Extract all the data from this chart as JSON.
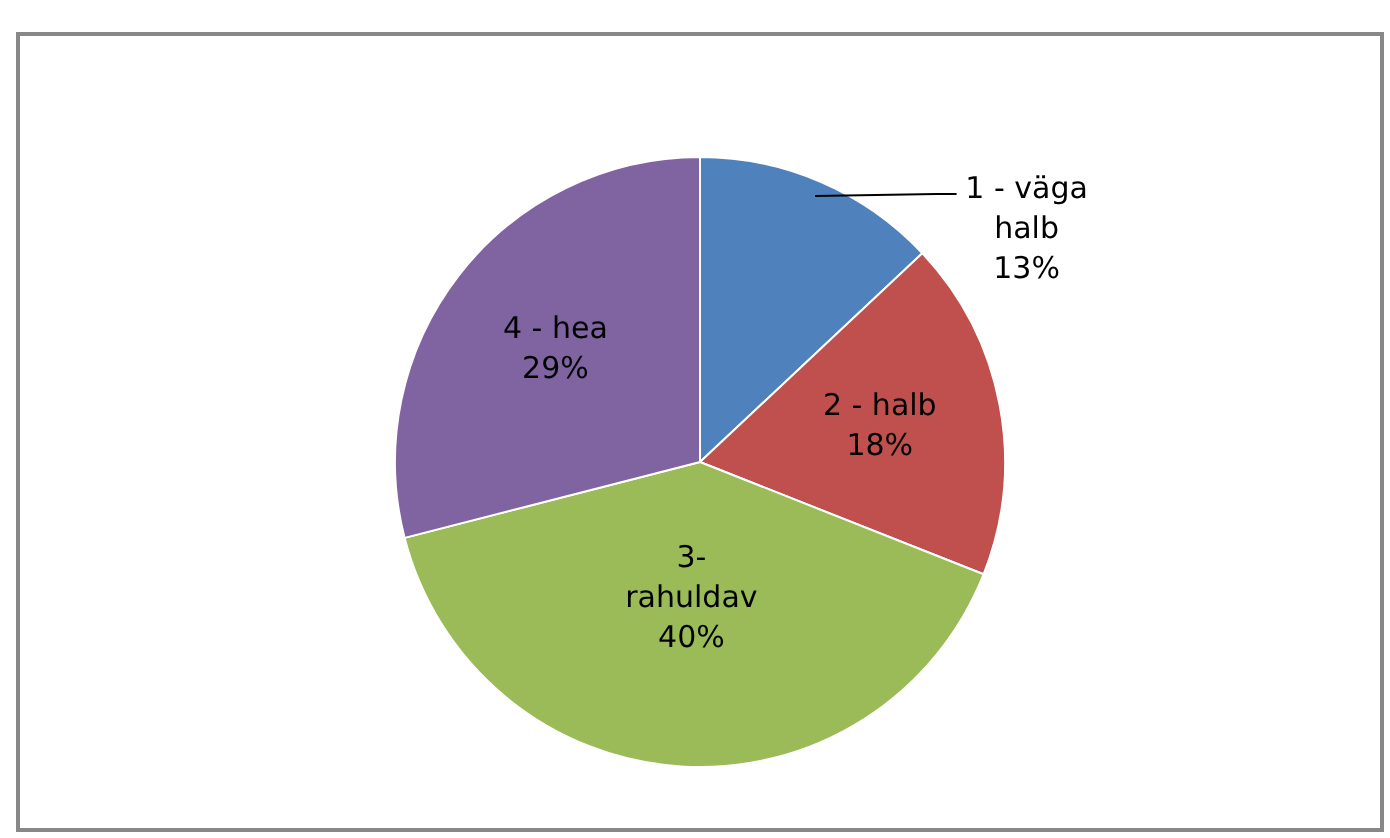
{
  "chart_data": {
    "type": "pie",
    "categories": [
      "1 - väga halb",
      "2 - halb",
      "3- rahuldav",
      "4 - hea"
    ],
    "values": [
      13,
      18,
      40,
      29
    ],
    "colors": [
      "#4f81bd",
      "#c0504d",
      "#9bbb59",
      "#8064a2"
    ],
    "value_labels": [
      "13%",
      "18%",
      "40%",
      "29%"
    ]
  }
}
